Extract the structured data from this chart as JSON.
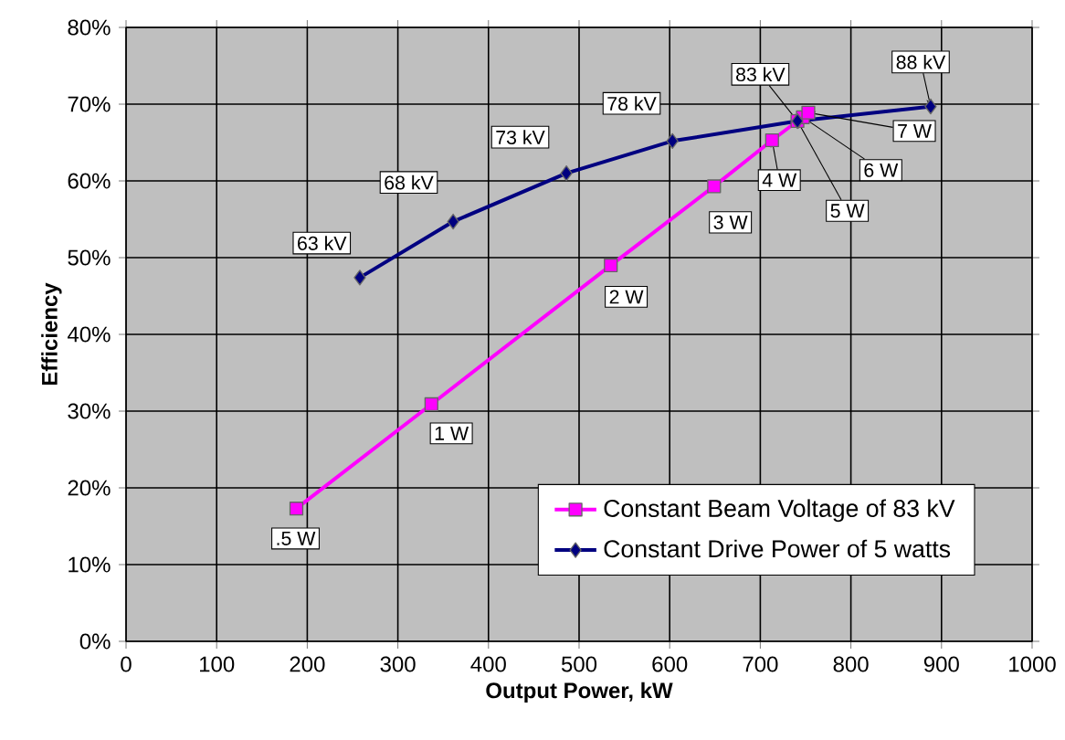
{
  "chart_data": {
    "type": "line",
    "xlabel": "Output Power, kW",
    "ylabel": "Efficiency",
    "xlim": [
      0,
      1000
    ],
    "xticks": [
      0,
      100,
      200,
      300,
      400,
      500,
      600,
      700,
      800,
      900,
      1000
    ],
    "ylim": [
      0,
      80
    ],
    "yticks": [
      {
        "value": 0,
        "label": "0%"
      },
      {
        "value": 10,
        "label": "10%"
      },
      {
        "value": 20,
        "label": "20%"
      },
      {
        "value": 30,
        "label": "30%"
      },
      {
        "value": 40,
        "label": "40%"
      },
      {
        "value": 50,
        "label": "50%"
      },
      {
        "value": 60,
        "label": "60%"
      },
      {
        "value": 70,
        "label": "70%"
      },
      {
        "value": 80,
        "label": "80%"
      }
    ],
    "grid": true,
    "legend": "bottom right",
    "series": [
      {
        "name": "Constant Beam Voltage of 83 kV",
        "color": "#ff00ff",
        "marker": "square",
        "x": [
          188,
          337,
          535,
          649,
          713,
          741,
          747,
          753
        ],
        "values": [
          17.3,
          30.9,
          49.0,
          59.3,
          65.3,
          67.8,
          68.3,
          68.9
        ]
      },
      {
        "name": "Constant Drive Power of 5 watts",
        "color": "#000080",
        "marker": "diamond",
        "x": [
          258,
          361,
          486,
          603,
          741,
          888
        ],
        "values": [
          47.4,
          54.7,
          61.0,
          65.2,
          67.8,
          69.7
        ]
      }
    ],
    "annotations": [
      {
        "text": ".5 W",
        "x": 188,
        "y": 17.3
      },
      {
        "text": "1 W",
        "x": 337,
        "y": 30.9
      },
      {
        "text": "2 W",
        "x": 535,
        "y": 49.0
      },
      {
        "text": "3 W",
        "x": 649,
        "y": 59.3
      },
      {
        "text": "4 W",
        "x": 713,
        "y": 65.3
      },
      {
        "text": "5 W",
        "x": 741,
        "y": 67.8
      },
      {
        "text": "6 W",
        "x": 747,
        "y": 68.3
      },
      {
        "text": "7 W",
        "x": 753,
        "y": 68.9
      },
      {
        "text": "63 kV",
        "x": 258,
        "y": 47.4
      },
      {
        "text": "68 kV",
        "x": 361,
        "y": 54.7
      },
      {
        "text": "73 kV",
        "x": 486,
        "y": 61.0
      },
      {
        "text": "78 kV",
        "x": 603,
        "y": 65.2
      },
      {
        "text": "83 kV",
        "x": 741,
        "y": 67.8
      },
      {
        "text": "88 kV",
        "x": 888,
        "y": 69.7
      }
    ]
  }
}
